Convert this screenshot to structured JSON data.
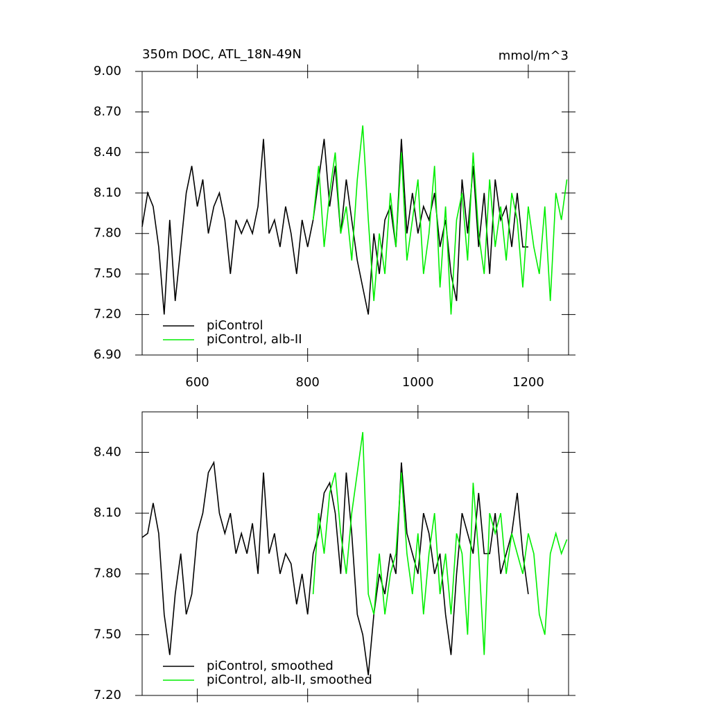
{
  "chart_data": [
    {
      "type": "line",
      "title": "350m DOC, ATL_18N-49N",
      "units_label": "mmol/m^3",
      "xlim": [
        500,
        1273
      ],
      "xticks": [
        600,
        800,
        1000,
        1200
      ],
      "xtick_labels": true,
      "ylim": [
        6.9,
        9.0
      ],
      "yticks": [
        {
          "value": 6.9,
          "label": "6.90"
        },
        {
          "value": 7.2,
          "label": "7.20"
        },
        {
          "value": 7.5,
          "label": "7.50"
        },
        {
          "value": 7.8,
          "label": "7.80"
        },
        {
          "value": 8.1,
          "label": "8.10"
        },
        {
          "value": 8.4,
          "label": "8.40"
        },
        {
          "value": 8.7,
          "label": "8.70"
        },
        {
          "value": 9.0,
          "label": "9.00"
        }
      ],
      "legend": "lower left",
      "series": [
        {
          "name": "piControl",
          "color": "#000000",
          "x": [
            500,
            510,
            520,
            530,
            540,
            550,
            560,
            570,
            580,
            590,
            600,
            610,
            620,
            630,
            640,
            650,
            660,
            670,
            680,
            690,
            700,
            710,
            720,
            730,
            740,
            750,
            760,
            770,
            780,
            790,
            800,
            810,
            820,
            830,
            840,
            850,
            860,
            870,
            880,
            890,
            900,
            910,
            920,
            930,
            940,
            950,
            960,
            970,
            980,
            990,
            1000,
            1010,
            1020,
            1030,
            1040,
            1050,
            1060,
            1070,
            1080,
            1090,
            1100,
            1110,
            1120,
            1130,
            1140,
            1150,
            1160,
            1170,
            1180,
            1190,
            1200
          ],
          "values": [
            7.85,
            8.1,
            8.0,
            7.7,
            7.2,
            7.9,
            7.3,
            7.7,
            8.1,
            8.3,
            8.0,
            8.2,
            7.8,
            8.0,
            8.1,
            7.9,
            7.5,
            7.9,
            7.8,
            7.9,
            7.8,
            8.0,
            8.5,
            7.8,
            7.9,
            7.7,
            8.0,
            7.8,
            7.5,
            7.9,
            7.7,
            7.9,
            8.2,
            8.5,
            8.0,
            8.3,
            7.8,
            8.2,
            7.9,
            7.6,
            7.4,
            7.2,
            7.8,
            7.5,
            7.9,
            8.0,
            7.7,
            8.5,
            7.8,
            8.1,
            7.8,
            8.0,
            7.9,
            8.1,
            7.7,
            7.9,
            7.5,
            7.3,
            8.2,
            7.8,
            8.3,
            7.7,
            8.1,
            7.5,
            8.2,
            7.9,
            8.0,
            7.7,
            8.1,
            7.7,
            7.7
          ]
        },
        {
          "name": "piControl, alb-II",
          "color": "#00ee00",
          "x": [
            810,
            820,
            830,
            840,
            850,
            860,
            870,
            880,
            890,
            900,
            910,
            920,
            930,
            940,
            950,
            960,
            970,
            980,
            990,
            1000,
            1010,
            1020,
            1030,
            1040,
            1050,
            1060,
            1070,
            1080,
            1090,
            1100,
            1110,
            1120,
            1130,
            1140,
            1150,
            1160,
            1170,
            1180,
            1190,
            1200,
            1210,
            1220,
            1230,
            1240,
            1250,
            1260,
            1270
          ],
          "values": [
            7.9,
            8.3,
            7.7,
            8.1,
            8.4,
            7.8,
            8.0,
            7.6,
            8.2,
            8.6,
            7.9,
            7.3,
            7.8,
            7.5,
            8.1,
            7.7,
            8.4,
            7.6,
            7.9,
            8.2,
            7.5,
            7.8,
            8.3,
            7.4,
            8.0,
            7.2,
            7.9,
            8.1,
            7.6,
            8.4,
            7.8,
            7.5,
            8.2,
            7.7,
            8.0,
            7.6,
            8.1,
            7.9,
            7.4,
            8.0,
            7.7,
            7.5,
            8.0,
            7.3,
            8.1,
            7.9,
            8.2
          ]
        }
      ]
    },
    {
      "type": "line",
      "xlim": [
        500,
        1273
      ],
      "xticks": [
        600,
        800,
        1000,
        1200
      ],
      "xtick_labels": false,
      "ylim": [
        7.2,
        8.6
      ],
      "yticks": [
        {
          "value": 7.2,
          "label": "7.20"
        },
        {
          "value": 7.5,
          "label": "7.50"
        },
        {
          "value": 7.8,
          "label": "7.80"
        },
        {
          "value": 8.1,
          "label": "8.10"
        },
        {
          "value": 8.4,
          "label": "8.40"
        }
      ],
      "legend": "lower left",
      "series": [
        {
          "name": "piControl, smoothed",
          "color": "#000000",
          "x": [
            500,
            510,
            520,
            530,
            540,
            550,
            560,
            570,
            580,
            590,
            600,
            610,
            620,
            630,
            640,
            650,
            660,
            670,
            680,
            690,
            700,
            710,
            720,
            730,
            740,
            750,
            760,
            770,
            780,
            790,
            800,
            810,
            820,
            830,
            840,
            850,
            860,
            870,
            880,
            890,
            900,
            910,
            920,
            930,
            940,
            950,
            960,
            970,
            980,
            990,
            1000,
            1010,
            1020,
            1030,
            1040,
            1050,
            1060,
            1070,
            1080,
            1090,
            1100,
            1110,
            1120,
            1130,
            1140,
            1150,
            1160,
            1170,
            1180,
            1190,
            1200
          ],
          "values": [
            7.98,
            8.0,
            8.15,
            8.0,
            7.6,
            7.4,
            7.7,
            7.9,
            7.6,
            7.7,
            8.0,
            8.1,
            8.3,
            8.35,
            8.1,
            8.0,
            8.1,
            7.9,
            8.0,
            7.9,
            8.05,
            7.8,
            8.3,
            7.9,
            8.0,
            7.8,
            7.9,
            7.85,
            7.65,
            7.8,
            7.6,
            7.9,
            8.0,
            8.2,
            8.25,
            8.1,
            7.8,
            8.3,
            8.0,
            7.6,
            7.5,
            7.3,
            7.6,
            7.8,
            7.7,
            7.9,
            7.8,
            8.35,
            8.0,
            7.9,
            7.8,
            8.1,
            8.0,
            7.8,
            7.9,
            7.6,
            7.4,
            7.8,
            8.1,
            8.0,
            7.9,
            8.2,
            7.9,
            7.9,
            8.1,
            7.8,
            7.9,
            8.0,
            8.2,
            7.9,
            7.7
          ]
        },
        {
          "name": "piControl, alb-II, smoothed",
          "color": "#00ee00",
          "x": [
            810,
            820,
            830,
            840,
            850,
            860,
            870,
            880,
            890,
            900,
            910,
            920,
            930,
            940,
            950,
            960,
            970,
            980,
            990,
            1000,
            1010,
            1020,
            1030,
            1040,
            1050,
            1060,
            1070,
            1080,
            1090,
            1100,
            1110,
            1120,
            1130,
            1140,
            1150,
            1160,
            1170,
            1180,
            1190,
            1200,
            1210,
            1220,
            1230,
            1240,
            1250,
            1260,
            1270
          ],
          "values": [
            7.7,
            8.1,
            7.9,
            8.2,
            8.3,
            8.0,
            7.8,
            8.1,
            8.3,
            8.5,
            7.7,
            7.6,
            7.9,
            7.6,
            7.8,
            7.9,
            8.3,
            7.9,
            7.7,
            8.0,
            7.6,
            7.9,
            8.1,
            7.7,
            7.9,
            7.6,
            8.0,
            7.9,
            7.5,
            8.25,
            7.9,
            7.4,
            8.1,
            8.0,
            8.1,
            7.8,
            8.0,
            7.9,
            7.8,
            8.0,
            7.9,
            7.6,
            7.5,
            7.9,
            8.0,
            7.9,
            7.97
          ]
        }
      ]
    }
  ]
}
